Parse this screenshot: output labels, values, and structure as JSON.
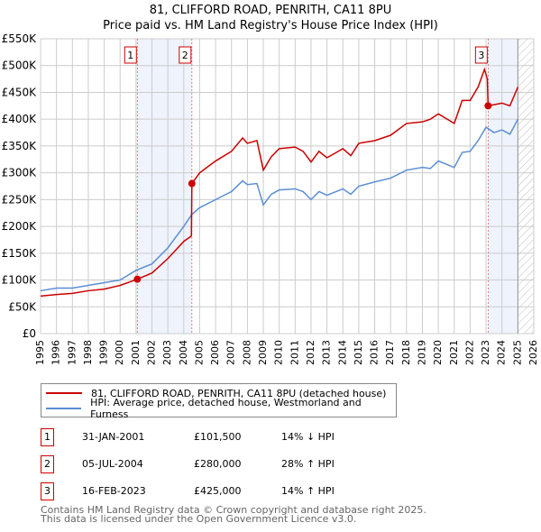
{
  "title": "81, CLIFFORD ROAD, PENRITH, CA11 8PU",
  "subtitle": "Price paid vs. HM Land Registry's House Price Index (HPI)",
  "chart_data": {
    "type": "line",
    "title": "81, CLIFFORD ROAD, PENRITH, CA11 8PU",
    "subtitle": "Price paid vs. HM Land Registry's House Price Index (HPI)",
    "xlim": [
      1995,
      2026
    ],
    "ylim": [
      0,
      550000
    ],
    "x_ticks": [
      "1995",
      "1996",
      "1997",
      "1998",
      "1999",
      "2000",
      "2001",
      "2002",
      "2003",
      "2004",
      "2005",
      "2006",
      "2007",
      "2008",
      "2009",
      "2010",
      "2011",
      "2012",
      "2013",
      "2014",
      "2015",
      "2016",
      "2017",
      "2018",
      "2019",
      "2020",
      "2021",
      "2022",
      "2023",
      "2024",
      "2025",
      "2026"
    ],
    "y_ticks": [
      {
        "v": 0,
        "label": "£0"
      },
      {
        "v": 50000,
        "label": "£50K"
      },
      {
        "v": 100000,
        "label": "£100K"
      },
      {
        "v": 150000,
        "label": "£150K"
      },
      {
        "v": 200000,
        "label": "£200K"
      },
      {
        "v": 250000,
        "label": "£250K"
      },
      {
        "v": 300000,
        "label": "£300K"
      },
      {
        "v": 350000,
        "label": "£350K"
      },
      {
        "v": 400000,
        "label": "£400K"
      },
      {
        "v": 450000,
        "label": "£450K"
      },
      {
        "v": 500000,
        "label": "£500K"
      },
      {
        "v": 550000,
        "label": "£550K"
      }
    ],
    "grid": true,
    "shaded_ranges": [
      [
        2001.08,
        2004.51
      ],
      [
        2023.13,
        2025.0
      ]
    ],
    "forecast_hatch_from": 2025.0,
    "series": [
      {
        "name": "81, CLIFFORD ROAD, PENRITH, CA11 8PU (detached house)",
        "color": "#cc0000",
        "x": [
          1995,
          1996,
          1997,
          1998,
          1999,
          2000,
          2001.08,
          2002,
          2003,
          2004,
          2004.48,
          2004.51,
          2005,
          2006,
          2007,
          2007.7,
          2008,
          2008.6,
          2009,
          2009.5,
          2010,
          2011,
          2011.5,
          2012,
          2012.5,
          2013,
          2014,
          2014.5,
          2015,
          2016,
          2017,
          2018,
          2019,
          2019.5,
          2020,
          2021,
          2021.5,
          2022,
          2022.5,
          2022.9,
          2023.08,
          2023.13,
          2024,
          2024.5,
          2025
        ],
        "values": [
          70000,
          73000,
          75000,
          80000,
          83000,
          90000,
          101500,
          113000,
          140000,
          172000,
          182000,
          280000,
          300000,
          322000,
          340000,
          365000,
          355000,
          360000,
          305000,
          330000,
          345000,
          348000,
          340000,
          320000,
          340000,
          328000,
          345000,
          332000,
          355000,
          360000,
          370000,
          392000,
          395000,
          400000,
          410000,
          392000,
          435000,
          435000,
          460000,
          493000,
          475000,
          425000,
          430000,
          425000,
          460000
        ]
      },
      {
        "name": "HPI: Average price, detached house, Westmorland and Furness",
        "color": "#5b8fd4",
        "x": [
          1995,
          1996,
          1997,
          1998,
          1999,
          2000,
          2001,
          2002,
          2003,
          2004,
          2004.5,
          2005,
          2006,
          2007,
          2007.7,
          2008,
          2008.6,
          2009,
          2009.5,
          2010,
          2011,
          2011.5,
          2012,
          2012.5,
          2013,
          2014,
          2014.5,
          2015,
          2016,
          2017,
          2018,
          2019,
          2019.5,
          2020,
          2021,
          2021.5,
          2022,
          2022.5,
          2023,
          2023.5,
          2024,
          2024.5,
          2025
        ],
        "values": [
          80000,
          85000,
          85000,
          90000,
          95000,
          100000,
          118000,
          130000,
          160000,
          200000,
          222000,
          235000,
          250000,
          265000,
          285000,
          278000,
          280000,
          240000,
          260000,
          268000,
          270000,
          265000,
          250000,
          265000,
          258000,
          270000,
          260000,
          275000,
          283000,
          290000,
          305000,
          310000,
          308000,
          322000,
          310000,
          338000,
          340000,
          360000,
          385000,
          375000,
          380000,
          372000,
          400000
        ]
      }
    ],
    "sales": [
      {
        "n": "1",
        "x": 2001.08,
        "value": 101500,
        "date": "31-JAN-2001",
        "price": "£101,500",
        "hpi": "14% ↓ HPI"
      },
      {
        "n": "2",
        "x": 2004.51,
        "value": 280000,
        "date": "05-JUL-2004",
        "price": "£280,000",
        "hpi": "28% ↑ HPI"
      },
      {
        "n": "3",
        "x": 2023.13,
        "value": 425000,
        "date": "16-FEB-2023",
        "price": "£425,000",
        "hpi": "14% ↑ HPI"
      }
    ]
  },
  "legend": [
    "81, CLIFFORD ROAD, PENRITH, CA11 8PU (detached house)",
    "HPI: Average price, detached house, Westmorland and Furness"
  ],
  "footer": [
    "Contains HM Land Registry data © Crown copyright and database right 2025.",
    "This data is licensed under the Open Government Licence v3.0."
  ]
}
